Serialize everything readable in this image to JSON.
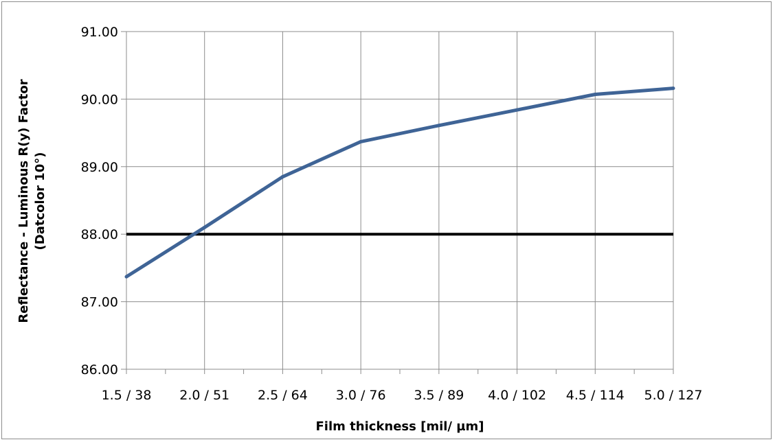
{
  "chart_data": {
    "type": "line",
    "title": "",
    "xlabel": "Film thickness [mil/ µm]",
    "ylabel_line1": "Reflectance - Luminous R(y) Factor",
    "ylabel_line2": "(Datcolor 10°)",
    "categories": [
      "1.5 / 38",
      "2.0 / 51",
      "2.5 / 64",
      "3.0 / 76",
      "3.5 / 89",
      "4.0 / 102",
      "4.5 / 114",
      "5.0 / 127"
    ],
    "y_ticks": [
      "86.00",
      "87.00",
      "88.00",
      "89.00",
      "90.00",
      "91.00"
    ],
    "ylim": [
      86,
      91
    ],
    "grid": true,
    "series": [
      {
        "values": [
          87.37,
          88.1,
          88.85,
          89.37,
          89.61,
          89.84,
          90.07,
          90.16
        ],
        "color": "#3f6496"
      }
    ],
    "reference_line": {
      "value": 88.0,
      "color": "#000000"
    }
  }
}
